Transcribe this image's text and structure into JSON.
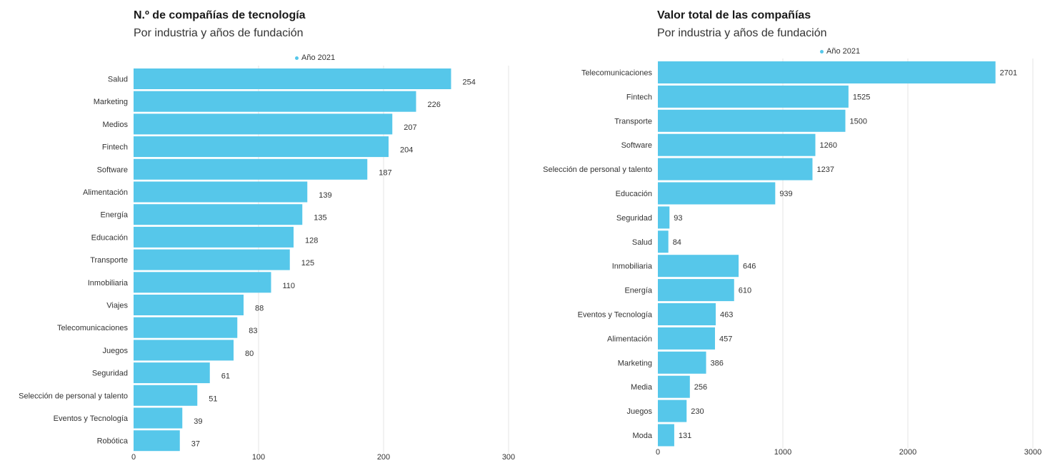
{
  "colors": {
    "bar": "#56c7ea",
    "grid": "#e6e6e6",
    "label": "#333333"
  },
  "chart_data": [
    {
      "type": "bar",
      "orientation": "horizontal",
      "title": "N.º de compañías de tecnología",
      "subtitle": "Por industria y años de fundación",
      "legend": "Año 2021",
      "legend_position": "top",
      "grid": true,
      "xlim": [
        0,
        300
      ],
      "xticks": [
        0,
        100,
        200,
        300
      ],
      "categories": [
        "Salud",
        "Marketing",
        "Medios",
        "Fintech",
        "Software",
        "Alimentación",
        "Energía",
        "Educación",
        "Transporte",
        "Inmobiliaria",
        "Viajes",
        "Telecomunicaciones",
        "Juegos",
        "Seguridad",
        "Selección de personal y talento",
        "Eventos y Tecnología",
        "Robótica"
      ],
      "series": [
        {
          "name": "Año 2021",
          "values": [
            254,
            226,
            207,
            204,
            187,
            139,
            135,
            128,
            125,
            110,
            88,
            83,
            80,
            61,
            51,
            39,
            37
          ]
        }
      ]
    },
    {
      "type": "bar",
      "orientation": "horizontal",
      "title": "Valor total de las compañías",
      "subtitle": "Por industria y años de fundación",
      "legend": "Año 2021",
      "legend_position": "top",
      "grid": true,
      "xlim": [
        0,
        3000
      ],
      "xticks": [
        0,
        1000,
        2000,
        3000
      ],
      "categories": [
        "Telecomunicaciones",
        "Fintech",
        "Transporte",
        "Software",
        "Selección de personal y talento",
        "Educación",
        "Seguridad",
        "Salud",
        "Inmobiliaria",
        "Energía",
        "Eventos y Tecnología",
        "Alimentación",
        "Marketing",
        "Media",
        "Juegos",
        "Moda"
      ],
      "series": [
        {
          "name": "Año 2021",
          "values": [
            2701,
            1525,
            1500,
            1260,
            1237,
            939,
            93,
            84,
            646,
            610,
            463,
            457,
            386,
            256,
            230,
            131
          ]
        }
      ]
    }
  ]
}
